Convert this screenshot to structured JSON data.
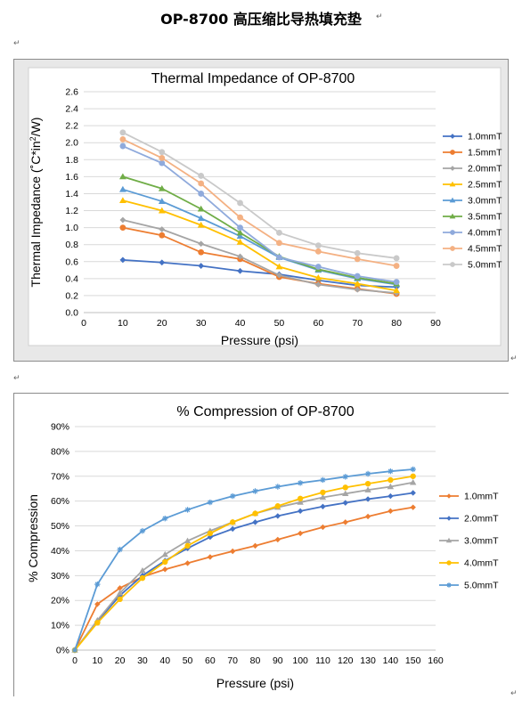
{
  "page": {
    "title": "OP-8700  高压缩比导热填充垫",
    "paragraph_mark": "↵"
  },
  "chart_data": [
    {
      "type": "line",
      "title": "Thermal Impedance of OP-8700",
      "xlabel": "Pressure (psi)",
      "ylabel_parts": [
        "Thermal  Impedance (˚C*in",
        "2",
        "/W)"
      ],
      "xlim": [
        0,
        90
      ],
      "ylim": [
        0,
        2.6
      ],
      "x_ticks": [
        0,
        10,
        20,
        30,
        40,
        50,
        60,
        70,
        80,
        90
      ],
      "y_ticks": [
        "0.0",
        "0.2",
        "0.4",
        "0.6",
        "0.8",
        "1.0",
        "1.2",
        "1.4",
        "1.6",
        "1.8",
        "2.0",
        "2.2",
        "2.4",
        "2.6"
      ],
      "grid": "horizontal",
      "legend_position": "right",
      "x": [
        10,
        20,
        30,
        40,
        50,
        60,
        70,
        80
      ],
      "series": [
        {
          "name": "1.0mmT",
          "color": "#4472c4",
          "marker": "diamond",
          "values": [
            0.62,
            0.59,
            0.55,
            0.49,
            0.45,
            0.38,
            0.32,
            0.3
          ]
        },
        {
          "name": "1.5mmT",
          "color": "#ed7d31",
          "marker": "circle",
          "values": [
            1.0,
            0.91,
            0.71,
            0.63,
            0.42,
            0.34,
            0.28,
            0.22
          ]
        },
        {
          "name": "2.0mmT",
          "color": "#a5a5a5",
          "marker": "diamond",
          "values": [
            1.09,
            0.98,
            0.81,
            0.66,
            0.44,
            0.33,
            0.27,
            0.23
          ]
        },
        {
          "name": "2.5mmT",
          "color": "#ffc000",
          "marker": "triangle",
          "values": [
            1.32,
            1.2,
            1.03,
            0.83,
            0.54,
            0.41,
            0.34,
            0.26
          ]
        },
        {
          "name": "3.0mmT",
          "color": "#5b9bd5",
          "marker": "triangle",
          "values": [
            1.45,
            1.31,
            1.11,
            0.9,
            0.65,
            0.5,
            0.4,
            0.33
          ]
        },
        {
          "name": "3.5mmT",
          "color": "#70ad47",
          "marker": "triangle",
          "values": [
            1.6,
            1.46,
            1.22,
            0.94,
            0.66,
            0.51,
            0.41,
            0.34
          ]
        },
        {
          "name": "4.0mmT",
          "color": "#8faadc",
          "marker": "circle",
          "values": [
            1.96,
            1.76,
            1.4,
            1.0,
            0.65,
            0.54,
            0.43,
            0.36
          ]
        },
        {
          "name": "4.5mmT",
          "color": "#f4b183",
          "marker": "circle",
          "values": [
            2.04,
            1.82,
            1.52,
            1.12,
            0.82,
            0.72,
            0.63,
            0.55
          ]
        },
        {
          "name": "5.0mmT",
          "color": "#c9c9c9",
          "marker": "circle",
          "values": [
            2.12,
            1.89,
            1.61,
            1.29,
            0.94,
            0.79,
            0.7,
            0.64
          ]
        }
      ]
    },
    {
      "type": "line",
      "title": "% Compression of OP-8700",
      "xlabel": "Pressure (psi)",
      "ylabel": "% Compression",
      "xlim": [
        0,
        160
      ],
      "ylim": [
        0,
        90
      ],
      "x_ticks": [
        0,
        10,
        20,
        30,
        40,
        50,
        60,
        70,
        80,
        90,
        100,
        110,
        120,
        130,
        140,
        150,
        160
      ],
      "y_ticks": [
        "0%",
        "10%",
        "20%",
        "30%",
        "40%",
        "50%",
        "60%",
        "70%",
        "80%",
        "90%"
      ],
      "grid": "horizontal",
      "legend_position": "right",
      "x": [
        0,
        10,
        20,
        30,
        40,
        50,
        60,
        70,
        80,
        90,
        100,
        110,
        120,
        130,
        140,
        150
      ],
      "series": [
        {
          "name": "1.0mmT",
          "color": "#ed7d31",
          "marker": "diamond",
          "values": [
            0,
            18.5,
            25,
            29.5,
            32.5,
            35,
            37.5,
            39.8,
            42,
            44.5,
            47,
            49.5,
            51.5,
            53.8,
            56,
            57.5
          ]
        },
        {
          "name": "2.0mmT",
          "color": "#4472c4",
          "marker": "diamond",
          "values": [
            0,
            11.5,
            22,
            30,
            36,
            41,
            45.5,
            48.8,
            51.5,
            54,
            56,
            57.8,
            59.3,
            60.8,
            62,
            63.3
          ]
        },
        {
          "name": "3.0mmT",
          "color": "#a5a5a5",
          "marker": "triangle",
          "values": [
            0,
            12,
            23,
            32,
            38.5,
            44,
            48,
            51.5,
            55,
            57.5,
            59.5,
            61.5,
            63,
            64.5,
            65.8,
            67.5
          ]
        },
        {
          "name": "4.0mmT",
          "color": "#ffc000",
          "marker": "circle",
          "values": [
            0,
            11,
            20.5,
            29,
            35.5,
            42,
            47,
            51.5,
            55,
            58,
            61,
            63.5,
            65.5,
            67,
            68.5,
            70
          ]
        },
        {
          "name": "5.0mmT",
          "color": "#5b9bd5",
          "marker": "star",
          "values": [
            0,
            26.5,
            40.5,
            48,
            53,
            56.5,
            59.5,
            62,
            64,
            65.8,
            67.3,
            68.5,
            69.8,
            71,
            72,
            72.8
          ]
        }
      ]
    }
  ]
}
